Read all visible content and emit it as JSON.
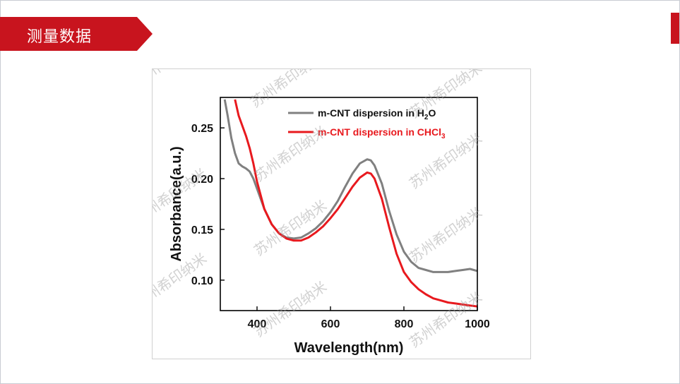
{
  "slide": {
    "title": "测量数据",
    "accent_color": "#c8141e"
  },
  "watermark": "苏州希印纳米",
  "chart_data": {
    "type": "line",
    "xlabel": "Wavelength(nm)",
    "ylabel": "Absorbance(a.u.)",
    "xlim": [
      300,
      1000
    ],
    "ylim": [
      0.07,
      0.28
    ],
    "xticks": [
      400,
      600,
      800,
      1000
    ],
    "yticks": [
      0.1,
      0.15,
      0.2,
      0.25
    ],
    "xtick_labels": [
      "400",
      "600",
      "800",
      "1000"
    ],
    "ytick_labels": [
      "0.10",
      "0.15",
      "0.20",
      "0.25"
    ],
    "legend_position": "top-right",
    "series": [
      {
        "name": "m-CNT dispersion in H2O",
        "label_main": "m-CNT dispersion in H",
        "label_sub": "2",
        "label_tail": "O",
        "color": "#808080",
        "x": [
          312,
          320,
          330,
          340,
          350,
          360,
          370,
          380,
          390,
          400,
          420,
          440,
          460,
          480,
          500,
          520,
          540,
          560,
          580,
          600,
          620,
          640,
          660,
          680,
          700,
          710,
          720,
          740,
          760,
          780,
          800,
          820,
          840,
          860,
          880,
          900,
          920,
          940,
          960,
          980,
          1000
        ],
        "y": [
          0.278,
          0.262,
          0.24,
          0.225,
          0.215,
          0.212,
          0.21,
          0.207,
          0.2,
          0.19,
          0.17,
          0.155,
          0.146,
          0.142,
          0.141,
          0.142,
          0.146,
          0.151,
          0.158,
          0.167,
          0.178,
          0.192,
          0.205,
          0.215,
          0.219,
          0.218,
          0.213,
          0.195,
          0.168,
          0.145,
          0.128,
          0.118,
          0.112,
          0.11,
          0.108,
          0.108,
          0.108,
          0.109,
          0.11,
          0.111,
          0.109
        ]
      },
      {
        "name": "m-CNT dispersion in CHCl3",
        "label_main": "m-CNT dispersion in CHCl",
        "label_sub": "3",
        "label_tail": "",
        "color": "#e8191e",
        "x": [
          340,
          350,
          360,
          370,
          380,
          390,
          400,
          420,
          440,
          460,
          480,
          500,
          520,
          540,
          560,
          580,
          600,
          620,
          640,
          660,
          680,
          700,
          710,
          720,
          740,
          760,
          780,
          800,
          820,
          840,
          860,
          880,
          900,
          920,
          940,
          960,
          980,
          1000
        ],
        "y": [
          0.278,
          0.262,
          0.252,
          0.242,
          0.23,
          0.215,
          0.197,
          0.17,
          0.155,
          0.146,
          0.141,
          0.139,
          0.139,
          0.142,
          0.147,
          0.153,
          0.161,
          0.17,
          0.181,
          0.192,
          0.201,
          0.206,
          0.205,
          0.2,
          0.18,
          0.152,
          0.126,
          0.108,
          0.098,
          0.091,
          0.086,
          0.082,
          0.08,
          0.078,
          0.077,
          0.076,
          0.075,
          0.074
        ]
      }
    ]
  }
}
